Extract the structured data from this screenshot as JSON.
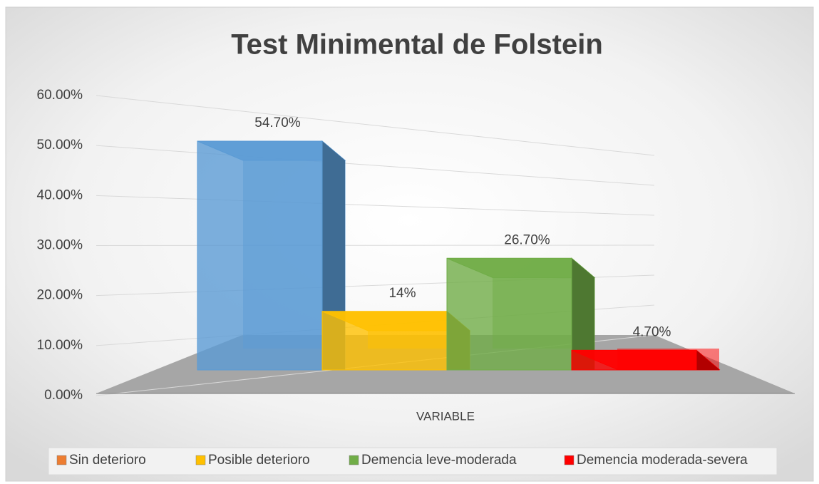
{
  "chart_data": {
    "type": "bar3d",
    "title": "Test Minimental de Folstein",
    "categories": [
      "VARIABLE"
    ],
    "series": [
      {
        "name": "Sin deterioro",
        "color": "#5b9bd5",
        "legend_color": "#ed7d31",
        "values": [
          54.7
        ],
        "value_labels": [
          "54.70%"
        ]
      },
      {
        "name": "Posible deterioro",
        "color": "#ffc000",
        "legend_color": "#ffc000",
        "values": [
          14
        ],
        "value_labels": [
          "14%"
        ]
      },
      {
        "name": "Demencia leve-moderada",
        "color": "#70ad47",
        "legend_color": "#70ad47",
        "values": [
          26.7
        ],
        "value_labels": [
          "26.70%"
        ]
      },
      {
        "name": "Demencia moderada-severa",
        "color": "#ff0000",
        "legend_color": "#ff0000",
        "values": [
          4.7
        ],
        "value_labels": [
          "4.70%"
        ]
      }
    ],
    "ylim": [
      0,
      60
    ],
    "yticks": [
      {
        "value": 0,
        "label": "0.00%"
      },
      {
        "value": 10,
        "label": "10.00%"
      },
      {
        "value": 20,
        "label": "20.00%"
      },
      {
        "value": 30,
        "label": "30.00%"
      },
      {
        "value": 40,
        "label": "40.00%"
      },
      {
        "value": 50,
        "label": "50.00%"
      },
      {
        "value": 60,
        "label": "60.00%"
      }
    ],
    "grid": true,
    "legend": "bottom"
  }
}
